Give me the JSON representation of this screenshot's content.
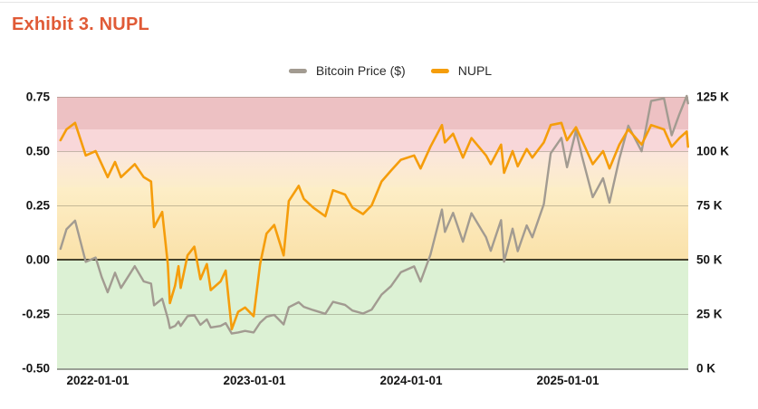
{
  "title": "Exhibit 3. NUPL",
  "legend": [
    {
      "label": "Bitcoin Price ($)"
    },
    {
      "label": "NUPL"
    }
  ],
  "axes": {
    "left_ticks": [
      "0.75",
      "0.50",
      "0.25",
      "0.00",
      "-0.25",
      "-0.50"
    ],
    "left_tick_values": [
      0.75,
      0.5,
      0.25,
      0.0,
      -0.25,
      -0.5
    ],
    "right_ticks": [
      "125 K",
      "100 K",
      "75 K",
      "50 K",
      "25 K",
      "0 K"
    ],
    "right_tick_values": [
      125,
      100,
      75,
      50,
      25,
      0
    ],
    "x_ticks": [
      "2022-01-01",
      "2023-01-01",
      "2024-01-01",
      "2025-01-01"
    ]
  },
  "chart_data": {
    "type": "line",
    "title": "Exhibit 3. NUPL",
    "x_range": [
      "2021-10-06",
      "2025-10-08"
    ],
    "left_axis": {
      "series": "NUPL",
      "range": [
        -0.5,
        0.75
      ],
      "gridlines": [
        0.75,
        0.5,
        0.25,
        -0.25
      ],
      "zero_line": 0.0
    },
    "right_axis": {
      "series": "Bitcoin Price ($)",
      "unit": "thousand USD",
      "range": [
        0,
        125
      ]
    },
    "legend_position": "top-center",
    "bands": [
      {
        "from": 0.75,
        "to": 0.6,
        "color": "#edc1c3"
      },
      {
        "from": 0.6,
        "to": 0.5,
        "color": "#f8d7d9"
      },
      {
        "from": 0.5,
        "to": 0.3333,
        "color": "#fbe6dd",
        "color2": "#fcedca"
      },
      {
        "from": 0.3333,
        "to": 0.0,
        "color": "#fdeec7",
        "color2": "#fae1a9"
      },
      {
        "from": 0.0,
        "to": -0.5,
        "color": "#dcf1d4"
      }
    ],
    "dates": [
      "2021-10-06",
      "2021-10-20",
      "2021-11-09",
      "2021-12-04",
      "2021-12-27",
      "2022-01-10",
      "2022-01-24",
      "2022-02-10",
      "2022-02-24",
      "2022-03-28",
      "2022-04-18",
      "2022-05-05",
      "2022-05-12",
      "2022-05-31",
      "2022-06-13",
      "2022-06-18",
      "2022-06-30",
      "2022-07-08",
      "2022-07-13",
      "2022-07-29",
      "2022-08-14",
      "2022-08-28",
      "2022-09-12",
      "2022-09-21",
      "2022-10-14",
      "2022-10-26",
      "2022-11-09",
      "2022-11-24",
      "2022-12-10",
      "2022-12-30",
      "2023-01-14",
      "2023-01-29",
      "2023-02-16",
      "2023-03-10",
      "2023-03-22",
      "2023-04-14",
      "2023-04-26",
      "2023-05-18",
      "2023-06-15",
      "2023-07-03",
      "2023-07-31",
      "2023-08-17",
      "2023-09-11",
      "2023-10-01",
      "2023-10-24",
      "2023-11-15",
      "2023-12-08",
      "2024-01-08",
      "2024-01-23",
      "2024-02-15",
      "2024-03-13",
      "2024-03-20",
      "2024-04-08",
      "2024-05-01",
      "2024-05-21",
      "2024-06-24",
      "2024-07-05",
      "2024-07-29",
      "2024-08-05",
      "2024-08-25",
      "2024-09-06",
      "2024-09-27",
      "2024-10-10",
      "2024-11-06",
      "2024-11-22",
      "2024-12-17",
      "2024-12-30",
      "2025-01-20",
      "2025-02-03",
      "2025-02-28",
      "2025-03-24",
      "2025-04-08",
      "2025-05-01",
      "2025-05-22",
      "2025-06-22",
      "2025-07-14",
      "2025-08-13",
      "2025-08-31",
      "2025-09-18",
      "2025-10-05",
      "2025-10-08"
    ],
    "series": [
      {
        "name": "Bitcoin Price ($)",
        "axis": "right",
        "unit": "thousand USD",
        "color": "#a29b91",
        "values": [
          55,
          64,
          68,
          49,
          51,
          42,
          35,
          44,
          37,
          47,
          40,
          39,
          29,
          32,
          23,
          18.5,
          19.5,
          21.5,
          19.5,
          24,
          24.5,
          20,
          22.5,
          18.8,
          19.5,
          20.8,
          16,
          16.5,
          17.2,
          16.5,
          21,
          23.7,
          24.6,
          20.2,
          28.1,
          30.4,
          28.3,
          26.8,
          25.1,
          30.6,
          29.2,
          26.6,
          25.2,
          27.0,
          33.9,
          37.8,
          44.2,
          46.9,
          39.9,
          52.3,
          73.1,
          62.8,
          71.6,
          58.3,
          71.4,
          60.3,
          54.1,
          68.2,
          49.1,
          64.3,
          53.9,
          65.8,
          60.3,
          75.6,
          99.0,
          106.1,
          92.6,
          109.4,
          97.7,
          78.8,
          87.5,
          76.3,
          96.5,
          111.7,
          99.9,
          123.1,
          124.3,
          107.3,
          117.0,
          125.4,
          122.0
        ]
      },
      {
        "name": "NUPL",
        "axis": "left",
        "color": "#f59d0b",
        "values": [
          0.55,
          0.6,
          0.63,
          0.48,
          0.5,
          0.44,
          0.38,
          0.45,
          0.38,
          0.44,
          0.38,
          0.36,
          0.15,
          0.22,
          -0.02,
          -0.2,
          -0.12,
          -0.03,
          -0.13,
          0.02,
          0.06,
          -0.09,
          -0.02,
          -0.14,
          -0.1,
          -0.05,
          -0.32,
          -0.24,
          -0.22,
          -0.26,
          -0.02,
          0.12,
          0.16,
          0.02,
          0.27,
          0.34,
          0.28,
          0.24,
          0.2,
          0.32,
          0.3,
          0.24,
          0.21,
          0.25,
          0.36,
          0.41,
          0.46,
          0.48,
          0.42,
          0.52,
          0.62,
          0.54,
          0.58,
          0.47,
          0.56,
          0.48,
          0.44,
          0.53,
          0.4,
          0.5,
          0.43,
          0.51,
          0.47,
          0.54,
          0.62,
          0.63,
          0.55,
          0.61,
          0.55,
          0.44,
          0.5,
          0.42,
          0.53,
          0.6,
          0.53,
          0.62,
          0.6,
          0.52,
          0.56,
          0.59,
          0.52
        ]
      }
    ]
  }
}
